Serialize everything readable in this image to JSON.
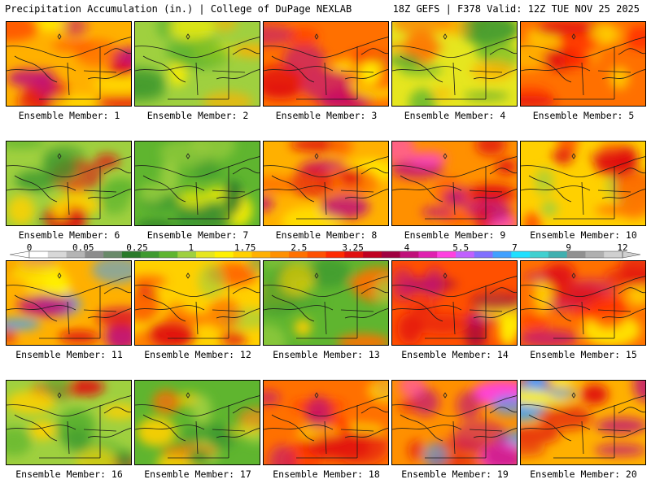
{
  "header": {
    "title_left": "Precipitation Accumulation (in.) | College of DuPage NEXLAB",
    "title_right": "18Z GEFS | F378 Valid: 12Z TUE NOV 25 2025"
  },
  "colorbar": {
    "labels": [
      "0",
      "0.05",
      "0.25",
      "1",
      "1.75",
      "2.5",
      "3.25",
      "4",
      "5.5",
      "7",
      "9",
      "12"
    ],
    "colors": [
      "#ffffff",
      "#d8d8d8",
      "#b4b4b4",
      "#8c8c8c",
      "#6a8a6a",
      "#2a7a2a",
      "#3f9a2f",
      "#5fb52f",
      "#9fd03f",
      "#e6e61f",
      "#fff000",
      "#ffd000",
      "#ffb000",
      "#ff9000",
      "#ff7000",
      "#ff5000",
      "#ff2a00",
      "#e01010",
      "#c00020",
      "#a00040",
      "#c0107a",
      "#e020b0",
      "#ff40e0",
      "#c060ff",
      "#8070ff",
      "#40a0ff",
      "#20e0ff",
      "#40d0d0",
      "#40b0b0",
      "#909090",
      "#b0b0b0",
      "#d0d0d0"
    ]
  },
  "members": [
    {
      "label": "Ensemble Member: 1"
    },
    {
      "label": "Ensemble Member: 2"
    },
    {
      "label": "Ensemble Member: 3"
    },
    {
      "label": "Ensemble Member: 4"
    },
    {
      "label": "Ensemble Member: 5"
    },
    {
      "label": "Ensemble Member: 6"
    },
    {
      "label": "Ensemble Member: 7"
    },
    {
      "label": "Ensemble Member: 8"
    },
    {
      "label": "Ensemble Member: 9"
    },
    {
      "label": "Ensemble Member: 10"
    },
    {
      "label": "Ensemble Member: 11"
    },
    {
      "label": "Ensemble Member: 12"
    },
    {
      "label": "Ensemble Member: 13"
    },
    {
      "label": "Ensemble Member: 14"
    },
    {
      "label": "Ensemble Member: 15"
    },
    {
      "label": "Ensemble Member: 16"
    },
    {
      "label": "Ensemble Member: 17"
    },
    {
      "label": "Ensemble Member: 18"
    },
    {
      "label": "Ensemble Member: 19"
    },
    {
      "label": "Ensemble Member: 20"
    }
  ],
  "panel_themes": [
    {
      "base": "#ffb000",
      "blobs": [
        "#e01010",
        "#c0107a",
        "#ff5000",
        "#fff000"
      ]
    },
    {
      "base": "#9fd03f",
      "blobs": [
        "#3f9a2f",
        "#5fb52f",
        "#ffb000",
        "#fff000"
      ]
    },
    {
      "base": "#ff7000",
      "blobs": [
        "#e01010",
        "#c0107a",
        "#fff000",
        "#ff2a00"
      ]
    },
    {
      "base": "#e6e61f",
      "blobs": [
        "#5fb52f",
        "#ffb000",
        "#3f9a2f",
        "#ff7000"
      ]
    },
    {
      "base": "#ff7000",
      "blobs": [
        "#e01010",
        "#ff2a00",
        "#fff000",
        "#ffb000"
      ]
    },
    {
      "base": "#9fd03f",
      "blobs": [
        "#3f9a2f",
        "#ffd000",
        "#e01010",
        "#5fb52f"
      ]
    },
    {
      "base": "#5fb52f",
      "blobs": [
        "#3f9a2f",
        "#9fd03f",
        "#fff000",
        "#2a7a2a"
      ]
    },
    {
      "base": "#ffb000",
      "blobs": [
        "#ff7000",
        "#e01010",
        "#fff000",
        "#c0107a"
      ]
    },
    {
      "base": "#ff9000",
      "blobs": [
        "#e01010",
        "#c0107a",
        "#ff40e0",
        "#ff5000"
      ]
    },
    {
      "base": "#ffd000",
      "blobs": [
        "#ff7000",
        "#e01010",
        "#9fd03f",
        "#ff5000"
      ]
    },
    {
      "base": "#ffb000",
      "blobs": [
        "#e01010",
        "#c0107a",
        "#40a0ff",
        "#fff000"
      ]
    },
    {
      "base": "#ffd000",
      "blobs": [
        "#ff7000",
        "#e01010",
        "#9fd03f",
        "#ff5000"
      ]
    },
    {
      "base": "#5fb52f",
      "blobs": [
        "#3f9a2f",
        "#ffd000",
        "#ff7000",
        "#9fd03f"
      ]
    },
    {
      "base": "#ff5000",
      "blobs": [
        "#c0107a",
        "#e01010",
        "#fff000",
        "#a00040"
      ]
    },
    {
      "base": "#ff7000",
      "blobs": [
        "#e01010",
        "#c0107a",
        "#fff000",
        "#ff2a00"
      ]
    },
    {
      "base": "#9fd03f",
      "blobs": [
        "#5fb52f",
        "#ffd000",
        "#e01010",
        "#3f9a2f"
      ]
    },
    {
      "base": "#5fb52f",
      "blobs": [
        "#3f9a2f",
        "#ffd000",
        "#9fd03f",
        "#ff7000"
      ]
    },
    {
      "base": "#ff7000",
      "blobs": [
        "#e01010",
        "#c0107a",
        "#fff000",
        "#ff2a00"
      ]
    },
    {
      "base": "#ff9000",
      "blobs": [
        "#c0107a",
        "#e01010",
        "#40a0ff",
        "#ff40e0"
      ]
    },
    {
      "base": "#ffb000",
      "blobs": [
        "#c0107a",
        "#e01010",
        "#40a0ff",
        "#fff000"
      ]
    }
  ]
}
